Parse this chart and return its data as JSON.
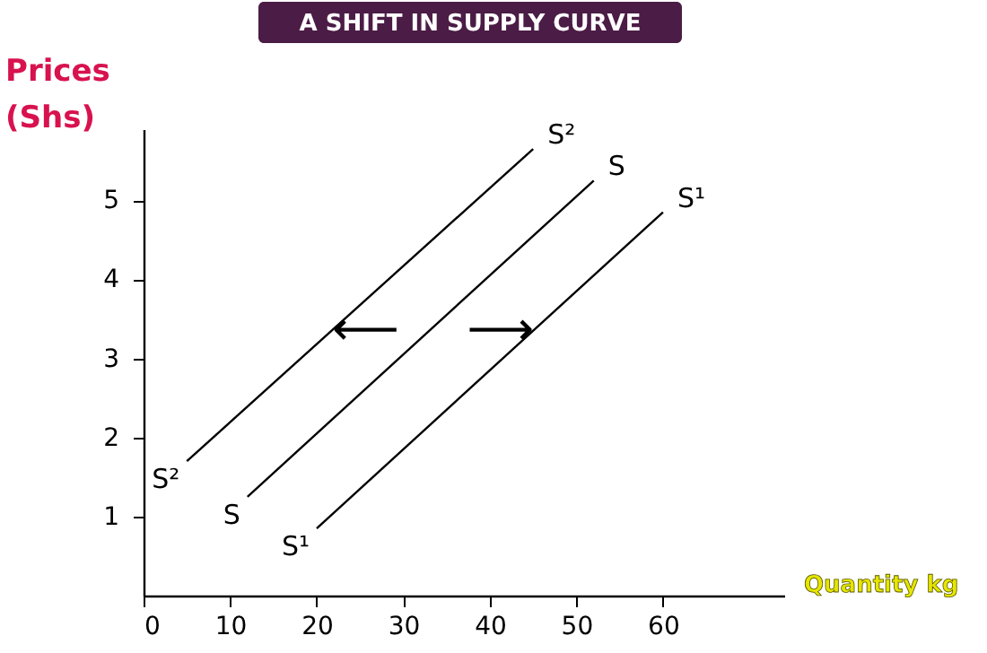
{
  "chart_data": {
    "type": "line",
    "title": "A SHIFT IN SUPPLY CURVE",
    "xlabel": "Quantity kg",
    "ylabel": "Prices (Shs)",
    "xlim": [
      0,
      74
    ],
    "xticks": [
      0,
      10,
      20,
      30,
      40,
      50,
      60
    ],
    "ylim": [
      0,
      5.9
    ],
    "yticks": [
      1,
      2,
      3,
      4,
      5
    ],
    "grid": false,
    "marker": "none",
    "line_style": "solid",
    "series": [
      {
        "name": "S²",
        "color": "#000000",
        "x": [
          5,
          45
        ],
        "values": [
          1.7,
          5.65
        ]
      },
      {
        "name": "S",
        "color": "#000000",
        "x": [
          12,
          52
        ],
        "values": [
          1.25,
          5.25
        ]
      },
      {
        "name": "S¹",
        "color": "#000000",
        "x": [
          20,
          60
        ],
        "values": [
          0.85,
          4.85
        ]
      }
    ],
    "annotations": [
      {
        "text": "⟵",
        "x": 21.8,
        "y": 3.36
      },
      {
        "text": "⟶",
        "x": 45.1,
        "y": 3.36
      }
    ]
  }
}
